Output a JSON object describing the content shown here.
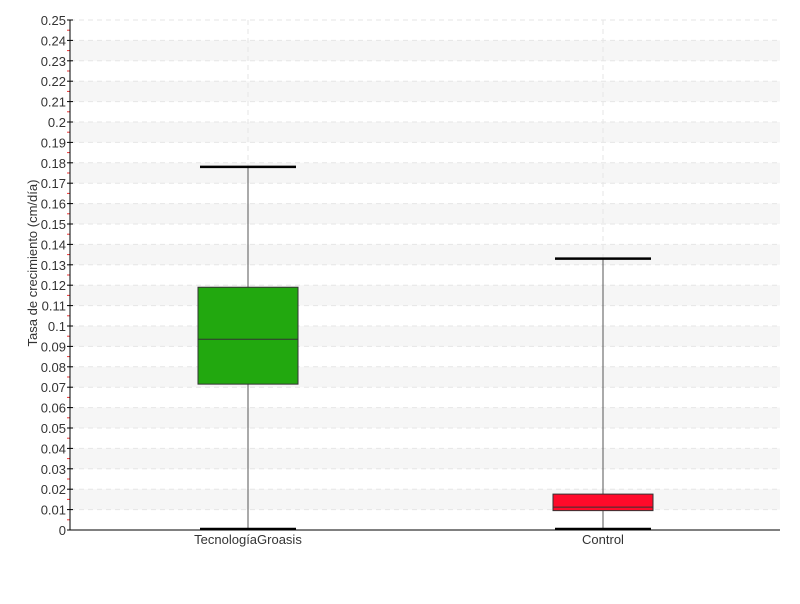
{
  "chart_data": {
    "type": "box",
    "title": "",
    "xlabel": "",
    "ylabel": "Tasa de crecimiento (cm/día)",
    "ylim": [
      0,
      0.25
    ],
    "ytick_step": 0.01,
    "grid": true,
    "categories": [
      "TecnologíaGroasis",
      "Control"
    ],
    "boxes": [
      {
        "category": "TecnologíaGroasis",
        "min": 0,
        "q1": 0.0715,
        "median": 0.0935,
        "q3": 0.119,
        "max": 0.178,
        "color": "#22a80f"
      },
      {
        "category": "Control",
        "min": 0,
        "q1": 0.0095,
        "median": 0.0112,
        "q3": 0.0176,
        "max": 0.133,
        "color": "#ff0a2a"
      }
    ]
  }
}
